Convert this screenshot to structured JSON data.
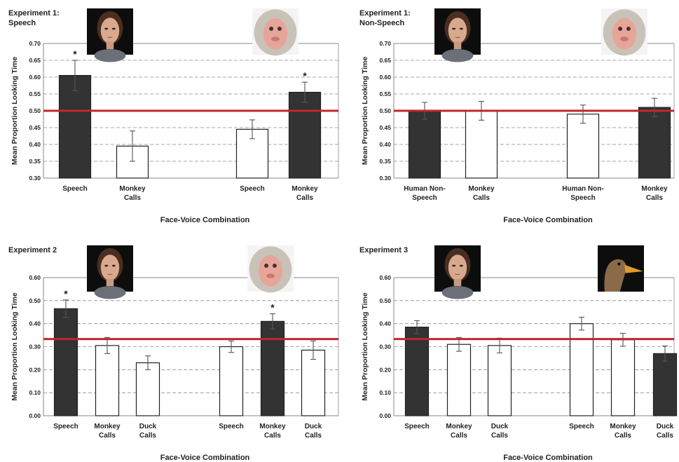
{
  "chart_data": [
    {
      "type": "bar",
      "title_lines": [
        "Experiment 1:",
        "Speech"
      ],
      "xlabel": "Face-Voice Combination",
      "ylabel": "Mean Proportion Looking Time",
      "ylim": [
        0.3,
        0.7
      ],
      "ytick_step": 0.05,
      "ytick_labels": [
        "0.30",
        "0.35",
        "0.40",
        "0.45",
        "0.50",
        "0.55",
        "0.60",
        "0.65",
        "0.70"
      ],
      "reference_line": 0.5,
      "grid": true,
      "face_icons": [
        "human-face-icon",
        "monkey-face-icon"
      ],
      "groups": [
        {
          "face": "human",
          "bars": [
            {
              "label": [
                "Speech"
              ],
              "value": 0.605,
              "error": 0.045,
              "fill": "dark",
              "significant": true
            },
            {
              "label": [
                "Monkey",
                "Calls"
              ],
              "value": 0.395,
              "error": 0.045,
              "fill": "white",
              "significant": false
            }
          ]
        },
        {
          "face": "monkey",
          "bars": [
            {
              "label": [
                "Speech"
              ],
              "value": 0.445,
              "error": 0.028,
              "fill": "white",
              "significant": false
            },
            {
              "label": [
                "Monkey",
                "Calls"
              ],
              "value": 0.555,
              "error": 0.03,
              "fill": "dark",
              "significant": true
            }
          ]
        }
      ]
    },
    {
      "type": "bar",
      "title_lines": [
        "Experiment 1:",
        "Non-Speech"
      ],
      "xlabel": "Face-Voice Combination",
      "ylabel": "Mean Proportion Looking Time",
      "ylim": [
        0.3,
        0.7
      ],
      "ytick_step": 0.05,
      "ytick_labels": [
        "0.30",
        "0.35",
        "0.40",
        "0.45",
        "0.50",
        "0.55",
        "0.60",
        "0.65",
        "0.70"
      ],
      "reference_line": 0.5,
      "grid": true,
      "face_icons": [
        "human-face-icon",
        "monkey-face-icon"
      ],
      "groups": [
        {
          "face": "human",
          "bars": [
            {
              "label": [
                "Human Non-",
                "Speech"
              ],
              "value": 0.5,
              "error": 0.025,
              "fill": "dark",
              "significant": false
            },
            {
              "label": [
                "Monkey",
                "Calls"
              ],
              "value": 0.5,
              "error": 0.028,
              "fill": "white",
              "significant": false
            }
          ]
        },
        {
          "face": "monkey",
          "bars": [
            {
              "label": [
                "Human Non-",
                "Speech"
              ],
              "value": 0.49,
              "error": 0.027,
              "fill": "white",
              "significant": false
            },
            {
              "label": [
                "Monkey",
                "Calls"
              ],
              "value": 0.51,
              "error": 0.027,
              "fill": "dark",
              "significant": false
            }
          ]
        }
      ]
    },
    {
      "type": "bar",
      "title_lines": [
        "Experiment 2"
      ],
      "xlabel": "Face-Voice Combination",
      "ylabel": "Mean Proportion Looking Time",
      "ylim": [
        0.0,
        0.6
      ],
      "ytick_step": 0.1,
      "ytick_labels": [
        "0.00",
        "0.10",
        "0.20",
        "0.30",
        "0.40",
        "0.50",
        "0.60"
      ],
      "reference_line": 0.333,
      "grid": true,
      "face_icons": [
        "human-face-icon",
        "monkey-face-icon"
      ],
      "groups": [
        {
          "face": "human",
          "bars": [
            {
              "label": [
                "Speech"
              ],
              "value": 0.465,
              "error": 0.038,
              "fill": "dark",
              "significant": true
            },
            {
              "label": [
                "Monkey",
                "Calls"
              ],
              "value": 0.305,
              "error": 0.035,
              "fill": "white",
              "significant": false
            },
            {
              "label": [
                "Duck",
                "Calls"
              ],
              "value": 0.23,
              "error": 0.03,
              "fill": "white",
              "significant": false
            }
          ]
        },
        {
          "face": "monkey",
          "bars": [
            {
              "label": [
                "Speech"
              ],
              "value": 0.3,
              "error": 0.025,
              "fill": "white",
              "significant": false
            },
            {
              "label": [
                "Monkey",
                "Calls"
              ],
              "value": 0.41,
              "error": 0.033,
              "fill": "dark",
              "significant": true
            },
            {
              "label": [
                "Duck",
                "Calls"
              ],
              "value": 0.285,
              "error": 0.04,
              "fill": "white",
              "significant": false
            }
          ]
        }
      ]
    },
    {
      "type": "bar",
      "title_lines": [
        "Experiment 3"
      ],
      "xlabel": "Face-Voice Combination",
      "ylabel": "Mean Proportion Looking Time",
      "ylim": [
        0.0,
        0.6
      ],
      "ytick_step": 0.1,
      "ytick_labels": [
        "0.00",
        "0.10",
        "0.20",
        "0.30",
        "0.40",
        "0.50",
        "0.60"
      ],
      "reference_line": 0.333,
      "grid": true,
      "face_icons": [
        "human-face-icon",
        "duck-head-icon"
      ],
      "groups": [
        {
          "face": "human",
          "bars": [
            {
              "label": [
                "Speech"
              ],
              "value": 0.385,
              "error": 0.028,
              "fill": "dark",
              "significant": false
            },
            {
              "label": [
                "Monkey",
                "Calls"
              ],
              "value": 0.31,
              "error": 0.03,
              "fill": "white",
              "significant": false
            },
            {
              "label": [
                "Duck",
                "Calls"
              ],
              "value": 0.305,
              "error": 0.032,
              "fill": "white",
              "significant": false
            }
          ]
        },
        {
          "face": "duck",
          "bars": [
            {
              "label": [
                "Speech"
              ],
              "value": 0.4,
              "error": 0.028,
              "fill": "white",
              "significant": false
            },
            {
              "label": [
                "Monkey",
                "Calls"
              ],
              "value": 0.33,
              "error": 0.028,
              "fill": "white",
              "significant": false
            },
            {
              "label": [
                "Duck",
                "Calls"
              ],
              "value": 0.27,
              "error": 0.033,
              "fill": "dark",
              "significant": false
            }
          ]
        }
      ]
    }
  ],
  "colors": {
    "dark_bar": "#333333",
    "white_bar": "#ffffff",
    "reference_line": "#c0272d",
    "grid": "#8a8a8a",
    "frame": "#8a8a8a"
  }
}
